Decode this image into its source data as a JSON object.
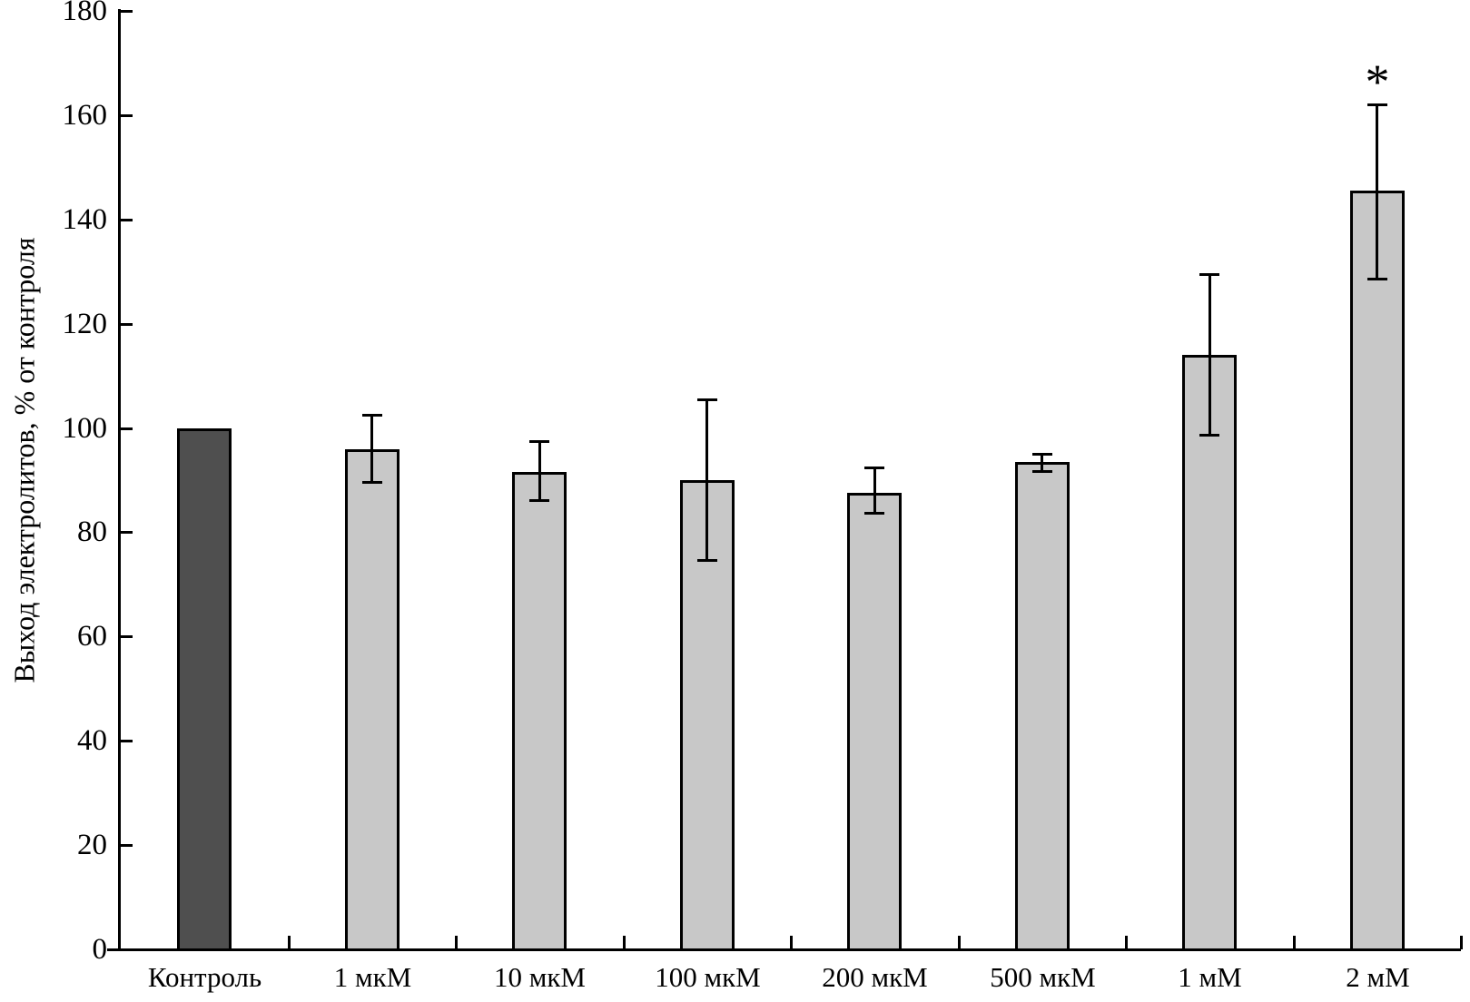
{
  "chart_data": {
    "type": "bar",
    "title": "",
    "xlabel": "",
    "ylabel": "Выход электролитов, % от контроля",
    "categories": [
      "Контроль",
      "1 мкМ",
      "10 мкМ",
      "100 мкМ",
      "200 мкМ",
      "500 мкМ",
      "1 мМ",
      "2 мМ"
    ],
    "values": [
      100,
      96,
      91.5,
      90,
      87.5,
      93.5,
      114,
      145.5
    ],
    "error_high": [
      null,
      102.5,
      97.5,
      105.5,
      92.5,
      95,
      129.5,
      162
    ],
    "error_low": [
      null,
      89.5,
      86,
      74.5,
      83.5,
      91.5,
      98.5,
      128.5
    ],
    "bar_fills": [
      "#4f4f4f",
      "#c8c8c8",
      "#c8c8c8",
      "#c8c8c8",
      "#c8c8c8",
      "#c8c8c8",
      "#c8c8c8",
      "#c8c8c8"
    ],
    "annotations": [
      {
        "category_index": 7,
        "text": "*"
      }
    ],
    "ylim": [
      0,
      180
    ],
    "yticks": [
      0,
      20,
      40,
      60,
      80,
      100,
      120,
      140,
      160,
      180
    ],
    "grid": false,
    "legend": null,
    "axis_color": "#000000",
    "background": "#ffffff"
  }
}
